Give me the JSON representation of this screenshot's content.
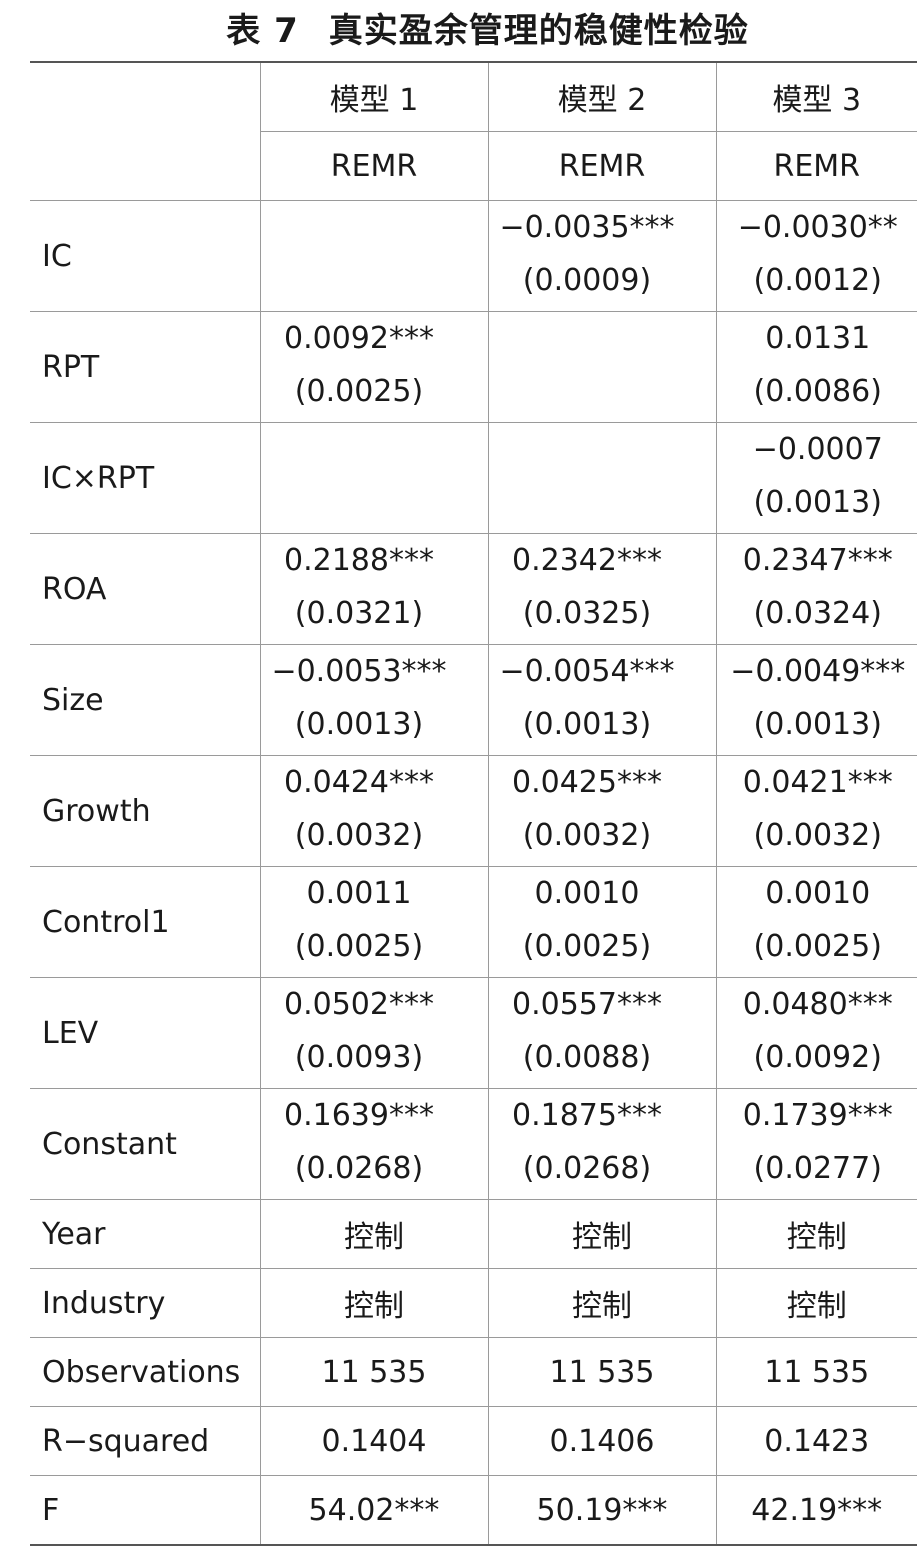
{
  "title": {
    "number": "表 7",
    "text": "真实盈余管理的稳健性检验"
  },
  "header": {
    "models": [
      "模型 1",
      "模型 2",
      "模型 3"
    ],
    "depvars": [
      "REMR",
      "REMR",
      "REMR"
    ]
  },
  "rows": [
    {
      "label": "IC",
      "cells": [
        {
          "coef": "",
          "se": ""
        },
        {
          "coef": "−0.0035***",
          "se": "(0.0009)"
        },
        {
          "coef": "−0.0030**",
          "se": "(0.0012)"
        }
      ]
    },
    {
      "label": "RPT",
      "cells": [
        {
          "coef": "0.0092***",
          "se": "(0.0025)"
        },
        {
          "coef": "",
          "se": ""
        },
        {
          "coef": "0.0131",
          "se": "(0.0086)"
        }
      ]
    },
    {
      "label": "IC×RPT",
      "cells": [
        {
          "coef": "",
          "se": ""
        },
        {
          "coef": "",
          "se": ""
        },
        {
          "coef": "−0.0007",
          "se": "(0.0013)"
        }
      ]
    },
    {
      "label": "ROA",
      "cells": [
        {
          "coef": "0.2188***",
          "se": "(0.0321)"
        },
        {
          "coef": "0.2342***",
          "se": "(0.0325)"
        },
        {
          "coef": "0.2347***",
          "se": "(0.0324)"
        }
      ]
    },
    {
      "label": "Size",
      "cells": [
        {
          "coef": "−0.0053***",
          "se": "(0.0013)"
        },
        {
          "coef": "−0.0054***",
          "se": "(0.0013)"
        },
        {
          "coef": "−0.0049***",
          "se": "(0.0013)"
        }
      ]
    },
    {
      "label": "Growth",
      "cells": [
        {
          "coef": "0.0424***",
          "se": "(0.0032)"
        },
        {
          "coef": "0.0425***",
          "se": "(0.0032)"
        },
        {
          "coef": "0.0421***",
          "se": "(0.0032)"
        }
      ]
    },
    {
      "label": "Control1",
      "cells": [
        {
          "coef": "0.0011",
          "se": "(0.0025)"
        },
        {
          "coef": "0.0010",
          "se": "(0.0025)"
        },
        {
          "coef": "0.0010",
          "se": "(0.0025)"
        }
      ]
    },
    {
      "label": "LEV",
      "cells": [
        {
          "coef": "0.0502***",
          "se": "(0.0093)"
        },
        {
          "coef": "0.0557***",
          "se": "(0.0088)"
        },
        {
          "coef": "0.0480***",
          "se": "(0.0092)"
        }
      ]
    },
    {
      "label": "Constant",
      "cells": [
        {
          "coef": "0.1639***",
          "se": "(0.0268)"
        },
        {
          "coef": "0.1875***",
          "se": "(0.0268)"
        },
        {
          "coef": "0.1739***",
          "se": "(0.0277)"
        }
      ]
    }
  ],
  "footer": [
    {
      "label": "Year",
      "values": [
        "控制",
        "控制",
        "控制"
      ]
    },
    {
      "label": "Industry",
      "values": [
        "控制",
        "控制",
        "控制"
      ]
    },
    {
      "label": "Observations",
      "values": [
        "11 535",
        "11 535",
        "11 535"
      ]
    },
    {
      "label": "R−squared",
      "values": [
        "0.1404",
        "0.1406",
        "0.1423"
      ]
    },
    {
      "label": "F",
      "values": [
        "54.02***",
        "50.19***",
        "42.19***"
      ]
    }
  ]
}
